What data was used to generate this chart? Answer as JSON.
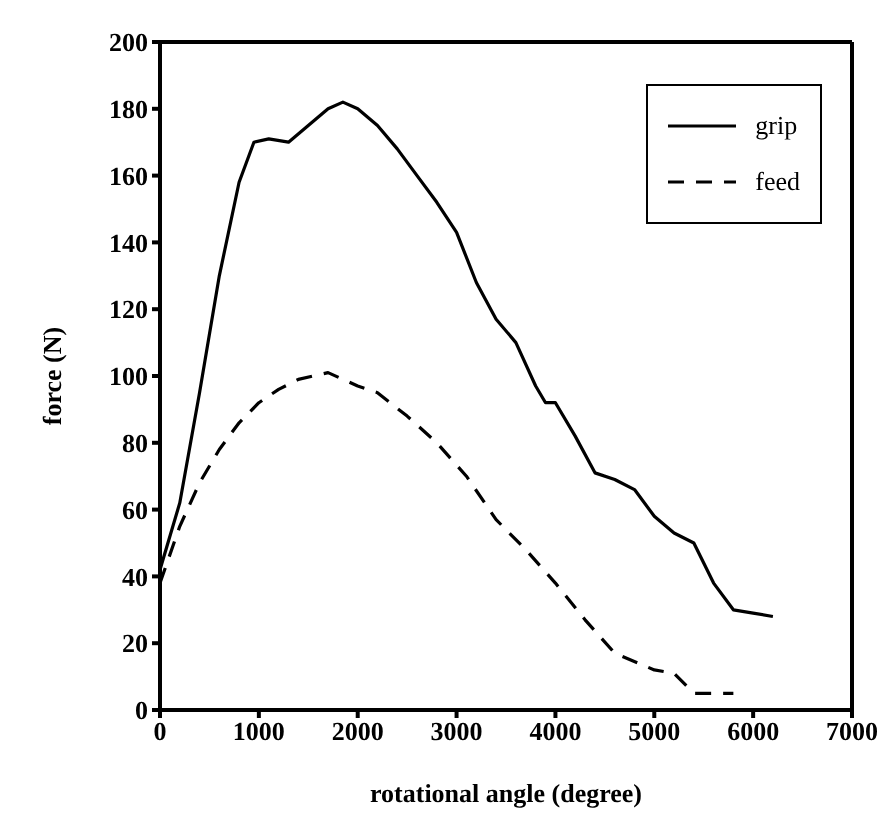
{
  "chart_data": {
    "type": "line",
    "xlabel": "rotational angle (degree)",
    "ylabel": "force (N)",
    "xlim": [
      0,
      7000
    ],
    "xticks": [
      0,
      1000,
      2000,
      3000,
      4000,
      5000,
      6000,
      7000
    ],
    "ylim": [
      0,
      200
    ],
    "yticks": [
      0,
      20,
      40,
      60,
      80,
      100,
      120,
      140,
      160,
      180,
      200
    ],
    "legend": "top right",
    "marker": "none",
    "series": [
      {
        "name": "grip",
        "color": "#000000",
        "line_style": "solid",
        "x": [
          0,
          200,
          400,
          600,
          800,
          950,
          1100,
          1300,
          1500,
          1700,
          1850,
          2000,
          2200,
          2400,
          2600,
          2800,
          3000,
          3200,
          3400,
          3600,
          3800,
          3900,
          4000,
          4200,
          4400,
          4600,
          4800,
          5000,
          5200,
          5400,
          5600,
          5800,
          6000,
          6200
        ],
        "values": [
          42,
          62,
          95,
          130,
          158,
          170,
          171,
          170,
          175,
          180,
          182,
          180,
          175,
          168,
          160,
          152,
          143,
          128,
          117,
          110,
          97,
          92,
          92,
          82,
          71,
          69,
          66,
          58,
          53,
          50,
          38,
          30,
          29,
          28
        ]
      },
      {
        "name": "feed",
        "color": "#000000",
        "line_style": "dashed",
        "x": [
          0,
          200,
          400,
          600,
          800,
          1000,
          1200,
          1400,
          1700,
          2000,
          2200,
          2500,
          2800,
          3100,
          3400,
          3700,
          4000,
          4300,
          4600,
          5000,
          5200,
          5400,
          5800
        ],
        "values": [
          38,
          55,
          68,
          78,
          86,
          92,
          96,
          99,
          101,
          97,
          95,
          88,
          80,
          70,
          57,
          48,
          38,
          27,
          17,
          12,
          11,
          5,
          5
        ]
      }
    ]
  }
}
